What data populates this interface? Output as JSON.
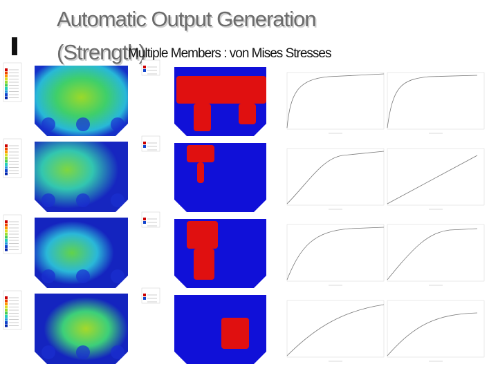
{
  "header": {
    "title": [
      "Automatic Output Generation",
      "(Strength)"
    ],
    "subtitle": "Multiple Members : von Mises Stresses"
  }
}
